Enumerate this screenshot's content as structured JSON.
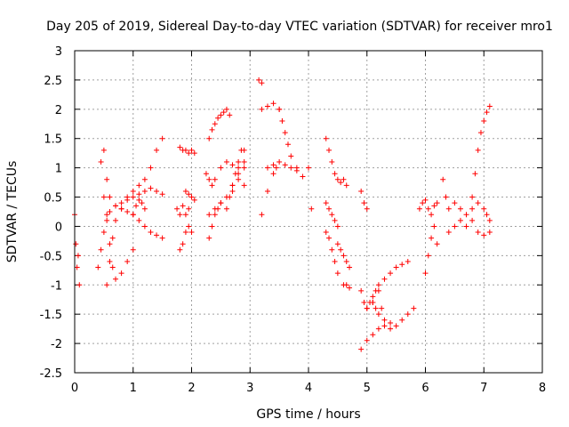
{
  "chart_data": {
    "type": "scatter",
    "title": "Day 205 of 2019, Sidereal Day-to-day VTEC variation (SDTVAR) for receiver mro1",
    "xlabel": "GPS time / hours",
    "ylabel": "SDTVAR / TECUs",
    "xlim": [
      0,
      8
    ],
    "ylim": [
      -2.5,
      3
    ],
    "grid": true,
    "marker": "+",
    "color": "#ff0000",
    "xticks": [
      {
        "value": 0,
        "label": "0"
      },
      {
        "value": 1,
        "label": "1"
      },
      {
        "value": 2,
        "label": "2"
      },
      {
        "value": 3,
        "label": "3"
      },
      {
        "value": 4,
        "label": "4"
      },
      {
        "value": 5,
        "label": "5"
      },
      {
        "value": 6,
        "label": "6"
      },
      {
        "value": 7,
        "label": "7"
      },
      {
        "value": 8,
        "label": "8"
      }
    ],
    "yticks": [
      {
        "value": -2.5,
        "label": "-2.5"
      },
      {
        "value": -2,
        "label": "-2"
      },
      {
        "value": -1.5,
        "label": "-1.5"
      },
      {
        "value": -1,
        "label": "-1"
      },
      {
        "value": -0.5,
        "label": "-0.5"
      },
      {
        "value": 0,
        "label": "0"
      },
      {
        "value": 0.5,
        "label": "0.5"
      },
      {
        "value": 1,
        "label": "1"
      },
      {
        "value": 1.5,
        "label": "1.5"
      },
      {
        "value": 2,
        "label": "2"
      },
      {
        "value": 2.5,
        "label": "2.5"
      },
      {
        "value": 3,
        "label": "3"
      }
    ],
    "series": [
      {
        "name": "s1",
        "x": [
          0.0,
          0.02,
          0.04,
          0.06,
          0.08
        ],
        "y": [
          0.2,
          -0.3,
          -0.7,
          -0.5,
          -1.0
        ]
      },
      {
        "name": "s2",
        "x": [
          0.4,
          0.45,
          0.5,
          0.55,
          0.6,
          0.7,
          0.8,
          0.9,
          1.0,
          1.1,
          1.2,
          1.3,
          1.4,
          1.5
        ],
        "y": [
          -0.7,
          -0.4,
          -0.1,
          0.1,
          0.25,
          0.35,
          0.4,
          0.45,
          0.5,
          0.55,
          0.6,
          0.65,
          0.6,
          0.55
        ]
      },
      {
        "name": "s3",
        "x": [
          0.45,
          0.5,
          0.55,
          0.6,
          0.7,
          0.8,
          0.9,
          1.0,
          1.1,
          1.2,
          1.3,
          1.4,
          1.5
        ],
        "y": [
          1.1,
          1.3,
          0.8,
          0.5,
          0.35,
          0.3,
          0.25,
          0.2,
          0.1,
          0.0,
          -0.1,
          -0.15,
          -0.2
        ]
      },
      {
        "name": "s4",
        "x": [
          0.5,
          0.55,
          0.6,
          0.65,
          0.7,
          0.8,
          0.9,
          1.0
        ],
        "y": [
          0.5,
          0.2,
          -0.3,
          -0.7,
          -0.9,
          -0.8,
          -0.6,
          -0.4
        ]
      },
      {
        "name": "s5",
        "x": [
          0.55,
          0.6,
          0.65,
          0.7,
          0.8,
          0.9,
          1.0,
          1.1,
          1.2,
          1.3,
          1.4,
          1.5
        ],
        "y": [
          -1.0,
          -0.6,
          -0.2,
          0.1,
          0.3,
          0.5,
          0.6,
          0.7,
          0.8,
          1.0,
          1.3,
          1.5
        ]
      },
      {
        "name": "s6",
        "x": [
          1.0,
          1.05,
          1.1,
          1.15,
          1.2
        ],
        "y": [
          0.2,
          0.35,
          0.45,
          0.4,
          0.3
        ]
      },
      {
        "name": "s7",
        "x": [
          1.8,
          1.85,
          1.9,
          1.95,
          2.0,
          2.05
        ],
        "y": [
          1.35,
          1.3,
          1.3,
          1.25,
          1.3,
          1.25
        ]
      },
      {
        "name": "s8",
        "x": [
          1.75,
          1.8,
          1.85,
          1.9,
          1.95
        ],
        "y": [
          0.3,
          0.2,
          0.35,
          0.2,
          0.3
        ]
      },
      {
        "name": "s9",
        "x": [
          1.9,
          1.95,
          2.0,
          2.05
        ],
        "y": [
          0.6,
          0.55,
          0.5,
          0.45
        ]
      },
      {
        "name": "s10",
        "x": [
          1.8,
          1.85,
          1.9,
          1.95,
          2.0
        ],
        "y": [
          -0.4,
          -0.3,
          -0.1,
          0.0,
          -0.1
        ]
      },
      {
        "name": "s11",
        "x": [
          2.3,
          2.35,
          2.4,
          2.45,
          2.5,
          2.55,
          2.6,
          2.65
        ],
        "y": [
          1.5,
          1.65,
          1.75,
          1.85,
          1.9,
          1.95,
          2.0,
          1.9
        ]
      },
      {
        "name": "s12",
        "x": [
          2.25,
          2.3,
          2.35,
          2.4,
          2.5,
          2.6,
          2.7,
          2.8,
          2.9
        ],
        "y": [
          0.9,
          0.8,
          0.7,
          0.8,
          1.0,
          1.1,
          1.05,
          1.0,
          1.1
        ]
      },
      {
        "name": "s13",
        "x": [
          2.3,
          2.35,
          2.4,
          2.45,
          2.5,
          2.6,
          2.7,
          2.8,
          2.9
        ],
        "y": [
          -0.2,
          0.0,
          0.2,
          0.3,
          0.4,
          0.5,
          0.7,
          0.9,
          1.0
        ]
      },
      {
        "name": "s14",
        "x": [
          2.3,
          2.4,
          2.5,
          2.6,
          2.7,
          2.8,
          2.9
        ],
        "y": [
          0.2,
          0.3,
          0.4,
          0.5,
          0.6,
          0.8,
          0.7
        ]
      },
      {
        "name": "s15",
        "x": [
          2.6,
          2.65,
          2.7,
          2.75,
          2.8,
          2.85,
          2.9
        ],
        "y": [
          0.3,
          0.5,
          0.7,
          0.9,
          1.1,
          1.3,
          1.3
        ]
      },
      {
        "name": "s16",
        "x": [
          3.15,
          3.2
        ],
        "y": [
          2.5,
          2.45
        ]
      },
      {
        "name": "s17",
        "x": [
          3.2,
          3.3,
          3.4,
          3.5
        ],
        "y": [
          2.0,
          2.05,
          2.1,
          2.0
        ]
      },
      {
        "name": "s18",
        "x": [
          3.3,
          3.4,
          3.5,
          3.6,
          3.7,
          3.8,
          3.9
        ],
        "y": [
          1.0,
          1.05,
          1.1,
          1.05,
          1.0,
          0.95,
          0.85
        ]
      },
      {
        "name": "s19",
        "x": [
          3.2,
          3.3,
          3.4,
          3.45
        ],
        "y": [
          0.2,
          0.6,
          0.9,
          1.0
        ]
      },
      {
        "name": "s20",
        "x": [
          3.5,
          3.55,
          3.6,
          3.65,
          3.7,
          3.8
        ],
        "y": [
          2.0,
          1.8,
          1.6,
          1.4,
          1.2,
          1.0
        ]
      },
      {
        "name": "s21",
        "x": [
          4.0,
          4.05
        ],
        "y": [
          1.0,
          0.3
        ]
      },
      {
        "name": "s22",
        "x": [
          4.3,
          4.35,
          4.4,
          4.45,
          4.5,
          4.55,
          4.6,
          4.65
        ],
        "y": [
          1.5,
          1.3,
          1.1,
          0.9,
          0.8,
          0.75,
          0.8,
          0.7
        ]
      },
      {
        "name": "s23",
        "x": [
          4.3,
          4.35,
          4.4,
          4.45,
          4.5,
          4.6,
          4.65,
          4.7
        ],
        "y": [
          -0.1,
          -0.2,
          -0.4,
          -0.6,
          -0.8,
          -1.0,
          -1.0,
          -1.05
        ]
      },
      {
        "name": "s24",
        "x": [
          4.5,
          4.55,
          4.6,
          4.65,
          4.7
        ],
        "y": [
          -0.3,
          -0.4,
          -0.5,
          -0.6,
          -0.7
        ]
      },
      {
        "name": "s25",
        "x": [
          4.3,
          4.35,
          4.4,
          4.45,
          4.5
        ],
        "y": [
          0.4,
          0.3,
          0.2,
          0.1,
          0.0
        ]
      },
      {
        "name": "s26",
        "x": [
          4.9,
          4.95,
          5.0
        ],
        "y": [
          0.6,
          0.4,
          0.3
        ]
      },
      {
        "name": "s27",
        "x": [
          4.9,
          4.95,
          5.0,
          5.05,
          5.1,
          5.15,
          5.2
        ],
        "y": [
          -1.1,
          -1.3,
          -1.4,
          -1.3,
          -1.2,
          -1.1,
          -1.0
        ]
      },
      {
        "name": "s28",
        "x": [
          5.0,
          5.1,
          5.2,
          5.3,
          5.4,
          5.5,
          5.6,
          5.7
        ],
        "y": [
          -1.4,
          -1.3,
          -1.1,
          -0.9,
          -0.8,
          -0.7,
          -0.65,
          -0.6
        ]
      },
      {
        "name": "s29",
        "x": [
          4.9,
          5.0,
          5.1,
          5.2,
          5.3,
          5.4,
          5.5,
          5.6,
          5.7,
          5.8
        ],
        "y": [
          -2.1,
          -1.95,
          -1.85,
          -1.75,
          -1.7,
          -1.75,
          -1.7,
          -1.6,
          -1.5,
          -1.4
        ]
      },
      {
        "name": "s30",
        "x": [
          5.1,
          5.15,
          5.2,
          5.25,
          5.3,
          5.4
        ],
        "y": [
          -1.3,
          -1.4,
          -1.5,
          -1.4,
          -1.6,
          -1.65
        ]
      },
      {
        "name": "s31",
        "x": [
          5.9,
          5.95,
          6.0,
          6.05,
          6.1,
          6.15,
          6.2
        ],
        "y": [
          0.3,
          0.4,
          0.45,
          0.3,
          0.2,
          0.35,
          0.4
        ]
      },
      {
        "name": "s32",
        "x": [
          6.0,
          6.05,
          6.1,
          6.15,
          6.2
        ],
        "y": [
          -0.8,
          -0.5,
          -0.2,
          0.0,
          -0.3
        ]
      },
      {
        "name": "s33",
        "x": [
          6.3,
          6.35,
          6.4,
          6.5,
          6.6,
          6.7,
          6.8,
          6.9,
          7.0,
          7.05,
          7.1
        ],
        "y": [
          0.8,
          0.5,
          0.3,
          0.4,
          0.3,
          0.2,
          0.3,
          0.4,
          0.3,
          0.2,
          0.1
        ]
      },
      {
        "name": "s34",
        "x": [
          6.4,
          6.5,
          6.6,
          6.7,
          6.8,
          6.9,
          7.0,
          7.1
        ],
        "y": [
          -0.1,
          0.0,
          0.1,
          0.0,
          0.1,
          -0.1,
          -0.15,
          -0.1
        ]
      },
      {
        "name": "s35",
        "x": [
          6.8,
          6.85,
          6.9,
          6.95,
          7.0,
          7.05,
          7.1
        ],
        "y": [
          0.5,
          0.9,
          1.3,
          1.6,
          1.8,
          1.95,
          2.05
        ]
      }
    ]
  }
}
